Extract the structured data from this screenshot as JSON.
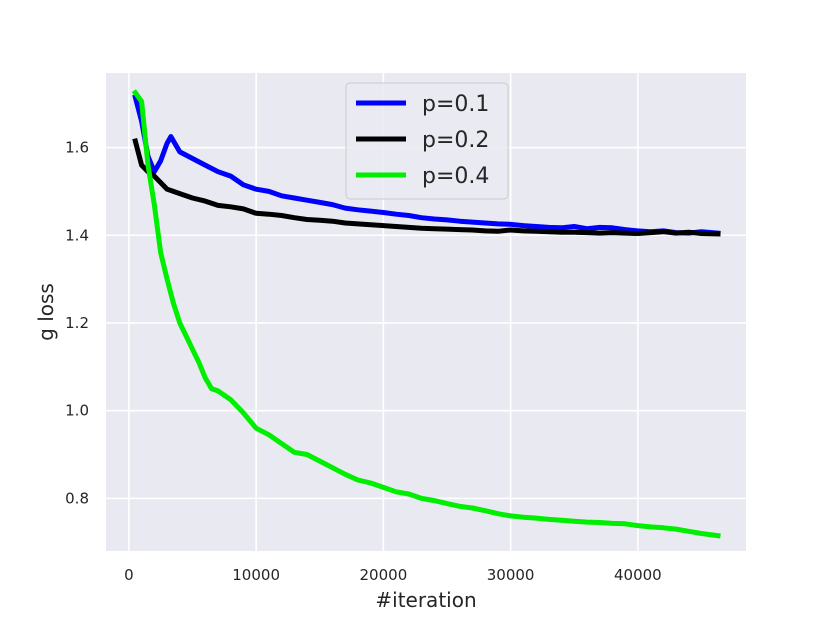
{
  "chart_data": {
    "type": "line",
    "xlabel": "#iteration",
    "ylabel": "g loss",
    "xlim": [
      -1800,
      48500
    ],
    "ylim": [
      0.68,
      1.77
    ],
    "xticks": [
      0,
      10000,
      20000,
      30000,
      40000
    ],
    "yticks": [
      0.8,
      1.0,
      1.2,
      1.4,
      1.6
    ],
    "xtick_labels": [
      "0",
      "10000",
      "20000",
      "30000",
      "40000"
    ],
    "ytick_labels": [
      "0.8",
      "1.0",
      "1.2",
      "1.4",
      "1.6"
    ],
    "grid": true,
    "legend_position": "upper-center",
    "background": "#e9e9f1",
    "series": [
      {
        "name": "p=0.1",
        "color": "#0000ff",
        "x": [
          500,
          1000,
          1500,
          2000,
          2500,
          3000,
          3300,
          4000,
          5000,
          6000,
          7000,
          8000,
          9000,
          10000,
          11000,
          12000,
          13000,
          14000,
          15000,
          16000,
          17000,
          18000,
          19000,
          20000,
          21000,
          22000,
          23000,
          24000,
          25000,
          26000,
          27000,
          28000,
          29000,
          30000,
          31000,
          32000,
          33000,
          34000,
          35000,
          36000,
          37000,
          38000,
          39000,
          40000,
          41000,
          42000,
          43000,
          44000,
          45000,
          46300
        ],
        "values": [
          1.715,
          1.66,
          1.58,
          1.545,
          1.57,
          1.61,
          1.625,
          1.59,
          1.575,
          1.56,
          1.545,
          1.535,
          1.515,
          1.505,
          1.5,
          1.49,
          1.485,
          1.48,
          1.475,
          1.47,
          1.462,
          1.458,
          1.455,
          1.452,
          1.448,
          1.445,
          1.44,
          1.437,
          1.435,
          1.432,
          1.43,
          1.428,
          1.426,
          1.425,
          1.422,
          1.42,
          1.418,
          1.417,
          1.42,
          1.415,
          1.418,
          1.417,
          1.413,
          1.41,
          1.408,
          1.41,
          1.406,
          1.405,
          1.408,
          1.405
        ]
      },
      {
        "name": "p=0.2",
        "color": "#000000",
        "x": [
          500,
          1000,
          1500,
          2000,
          2500,
          3000,
          3500,
          4000,
          5000,
          6000,
          7000,
          8000,
          9000,
          10000,
          11000,
          12000,
          13000,
          14000,
          15000,
          16000,
          17000,
          18000,
          19000,
          20000,
          21000,
          22000,
          23000,
          24000,
          25000,
          26000,
          27000,
          28000,
          29000,
          30000,
          31000,
          32000,
          33000,
          34000,
          35000,
          36000,
          37000,
          38000,
          39000,
          40000,
          41000,
          42000,
          43000,
          44000,
          45000,
          46300
        ],
        "values": [
          1.615,
          1.56,
          1.545,
          1.535,
          1.52,
          1.505,
          1.5,
          1.495,
          1.485,
          1.478,
          1.468,
          1.465,
          1.46,
          1.45,
          1.448,
          1.445,
          1.44,
          1.436,
          1.434,
          1.432,
          1.428,
          1.426,
          1.424,
          1.422,
          1.42,
          1.418,
          1.416,
          1.415,
          1.414,
          1.413,
          1.412,
          1.41,
          1.409,
          1.412,
          1.41,
          1.409,
          1.408,
          1.407,
          1.407,
          1.406,
          1.405,
          1.406,
          1.405,
          1.404,
          1.406,
          1.408,
          1.405,
          1.407,
          1.404,
          1.403
        ]
      },
      {
        "name": "p=0.4",
        "color": "#00ee00",
        "x": [
          500,
          1000,
          1500,
          2000,
          2500,
          3000,
          3500,
          4000,
          4500,
          5000,
          5500,
          6000,
          6500,
          7000,
          8000,
          9000,
          10000,
          11000,
          12000,
          13000,
          14000,
          15000,
          16000,
          17000,
          18000,
          19000,
          20000,
          21000,
          22000,
          23000,
          24000,
          25000,
          26000,
          27000,
          28000,
          29000,
          30000,
          31000,
          32000,
          33000,
          34000,
          35000,
          36000,
          37000,
          38000,
          39000,
          40000,
          41000,
          42000,
          43000,
          44000,
          45000,
          46300
        ],
        "values": [
          1.725,
          1.705,
          1.56,
          1.47,
          1.36,
          1.3,
          1.245,
          1.2,
          1.17,
          1.14,
          1.11,
          1.075,
          1.05,
          1.045,
          1.025,
          0.995,
          0.96,
          0.945,
          0.925,
          0.905,
          0.9,
          0.885,
          0.87,
          0.855,
          0.842,
          0.835,
          0.825,
          0.815,
          0.81,
          0.8,
          0.795,
          0.788,
          0.782,
          0.778,
          0.772,
          0.765,
          0.76,
          0.757,
          0.755,
          0.752,
          0.75,
          0.748,
          0.746,
          0.745,
          0.743,
          0.742,
          0.738,
          0.735,
          0.733,
          0.73,
          0.725,
          0.72,
          0.715
        ]
      }
    ]
  }
}
